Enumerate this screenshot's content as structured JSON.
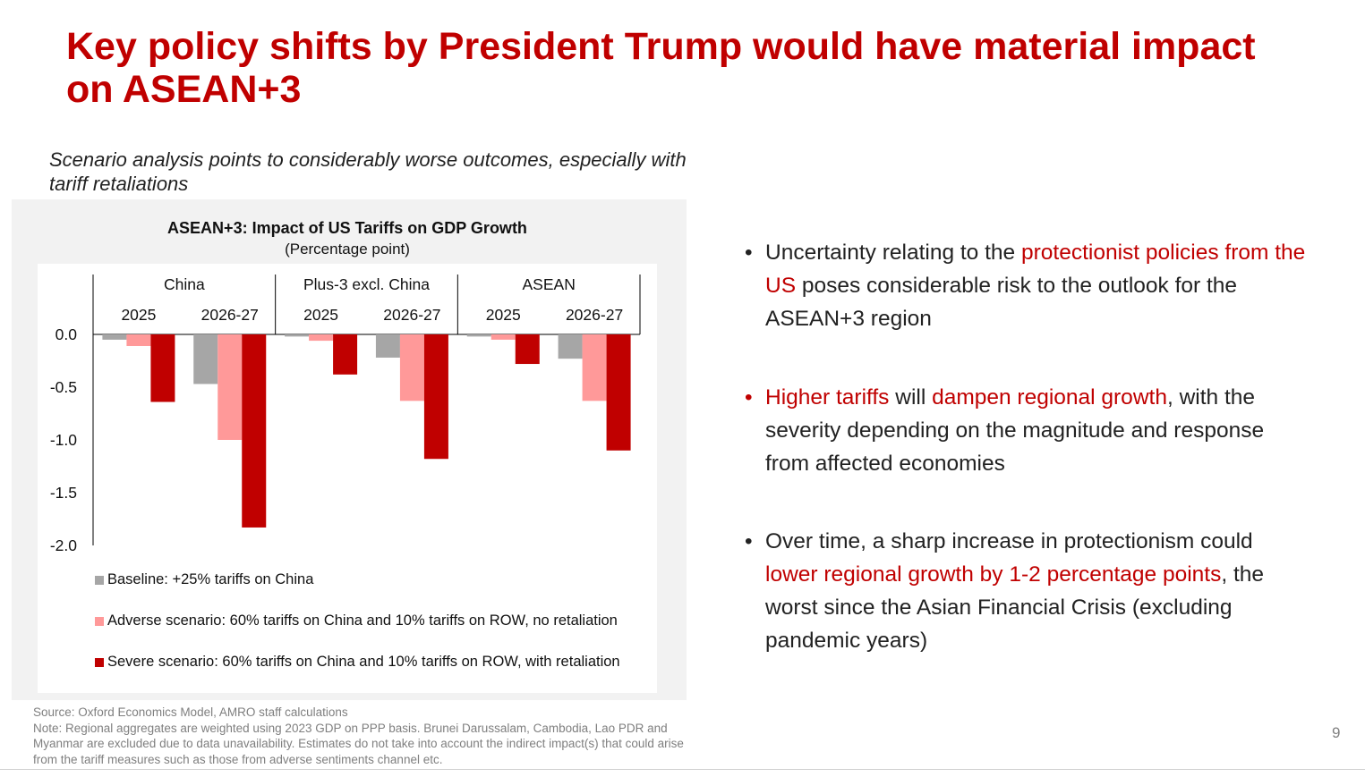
{
  "slide": {
    "title": "Key policy shifts by President Trump would have material impact on ASEAN+3",
    "subtitle": "Scenario analysis points to considerably worse outcomes, especially with tariff retaliations",
    "page_number": "9",
    "accent_color": "#c00000"
  },
  "chart_data": {
    "type": "bar",
    "title": "ASEAN+3: Impact of US Tariffs on GDP Growth",
    "subtitle": "(Percentage point)",
    "groups": [
      {
        "name": "China",
        "categories": [
          "2025",
          "2026-27"
        ]
      },
      {
        "name": "Plus-3 excl. China",
        "categories": [
          "2025",
          "2026-27"
        ]
      },
      {
        "name": "ASEAN",
        "categories": [
          "2025",
          "2026-27"
        ]
      }
    ],
    "series": [
      {
        "name": "Baseline: +25% tariffs on China",
        "color": "#a6a6a6",
        "values": [
          -0.05,
          -0.47,
          -0.02,
          -0.22,
          -0.02,
          -0.23
        ]
      },
      {
        "name": "Adverse scenario: 60% tariffs on China and 10% tariffs on ROW, no retaliation",
        "color": "#ff9999",
        "values": [
          -0.11,
          -1.0,
          -0.06,
          -0.63,
          -0.05,
          -0.63
        ]
      },
      {
        "name": "Severe scenario: 60% tariffs on China and 10% tariffs on ROW, with retaliation",
        "color": "#c00000",
        "values": [
          -0.64,
          -1.83,
          -0.38,
          -1.18,
          -0.28,
          -1.1
        ]
      }
    ],
    "y_ticks": [
      "0.0",
      "-0.5",
      "-1.0",
      "-1.5",
      "-2.0"
    ],
    "ylim": [
      -2.0,
      0.0
    ],
    "grid": false,
    "legend_position": "bottom"
  },
  "source_note": {
    "source": "Source: Oxford Economics Model, AMRO staff calculations",
    "note": "Note: Regional aggregates are weighted using 2023 GDP on PPP basis. Brunei Darussalam, Cambodia, Lao PDR and Myanmar are excluded due to data unavailability. Estimates do not take into account the indirect impact(s) that could arise from the tariff measures such as those from adverse sentiments channel etc."
  },
  "bullets": [
    {
      "dot_color": "#222222",
      "parts": [
        {
          "text": "Uncertainty relating to the ",
          "highlight": false
        },
        {
          "text": "protectionist policies from the US",
          "highlight": true
        },
        {
          "text": " poses considerable risk to the outlook for the ASEAN+3 region",
          "highlight": false
        }
      ]
    },
    {
      "dot_color": "#c00000",
      "parts": [
        {
          "text": "Higher tariffs",
          "highlight": true
        },
        {
          "text": " will ",
          "highlight": false
        },
        {
          "text": "dampen regional growth",
          "highlight": true
        },
        {
          "text": ", with the severity depending on the magnitude and response from affected economies",
          "highlight": false
        }
      ]
    },
    {
      "dot_color": "#222222",
      "parts": [
        {
          "text": "Over time, a sharp increase in protectionism could ",
          "highlight": false
        },
        {
          "text": "lower regional growth by 1-2 percentage points",
          "highlight": true
        },
        {
          "text": ", the worst since the Asian Financial Crisis (excluding pandemic years)",
          "highlight": false
        }
      ]
    }
  ]
}
